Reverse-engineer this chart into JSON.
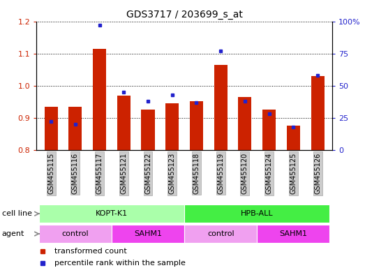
{
  "title": "GDS3717 / 203699_s_at",
  "samples": [
    "GSM455115",
    "GSM455116",
    "GSM455117",
    "GSM455121",
    "GSM455122",
    "GSM455123",
    "GSM455118",
    "GSM455119",
    "GSM455120",
    "GSM455124",
    "GSM455125",
    "GSM455126"
  ],
  "red_values": [
    0.935,
    0.935,
    1.115,
    0.97,
    0.925,
    0.945,
    0.953,
    1.065,
    0.965,
    0.925,
    0.875,
    1.03
  ],
  "blue_values_pct": [
    22,
    20,
    97,
    45,
    38,
    43,
    37,
    77,
    38,
    28,
    18,
    58
  ],
  "ylim_left": [
    0.8,
    1.2
  ],
  "ylim_right": [
    0,
    100
  ],
  "yticks_left": [
    0.8,
    0.9,
    1.0,
    1.1,
    1.2
  ],
  "yticks_right": [
    0,
    25,
    50,
    75,
    100
  ],
  "ytick_labels_right": [
    "0",
    "25",
    "50",
    "75",
    "100%"
  ],
  "cell_line_groups": [
    {
      "label": "KOPT-K1",
      "start": 0,
      "end": 6,
      "color": "#AAFFAA"
    },
    {
      "label": "HPB-ALL",
      "start": 6,
      "end": 12,
      "color": "#44EE44"
    }
  ],
  "agent_groups": [
    {
      "label": "control",
      "start": 0,
      "end": 3,
      "color": "#F0A0F0"
    },
    {
      "label": "SAHM1",
      "start": 3,
      "end": 6,
      "color": "#EE44EE"
    },
    {
      "label": "control",
      "start": 6,
      "end": 9,
      "color": "#F0A0F0"
    },
    {
      "label": "SAHM1",
      "start": 9,
      "end": 12,
      "color": "#EE44EE"
    }
  ],
  "bar_width": 0.55,
  "red_color": "#CC2200",
  "blue_color": "#2222CC",
  "background_color": "#FFFFFF",
  "tick_bg_color": "#CCCCCC",
  "ybase": 0.8,
  "legend_red": "transformed count",
  "legend_blue": "percentile rank within the sample",
  "cell_line_label": "cell line",
  "agent_label": "agent"
}
